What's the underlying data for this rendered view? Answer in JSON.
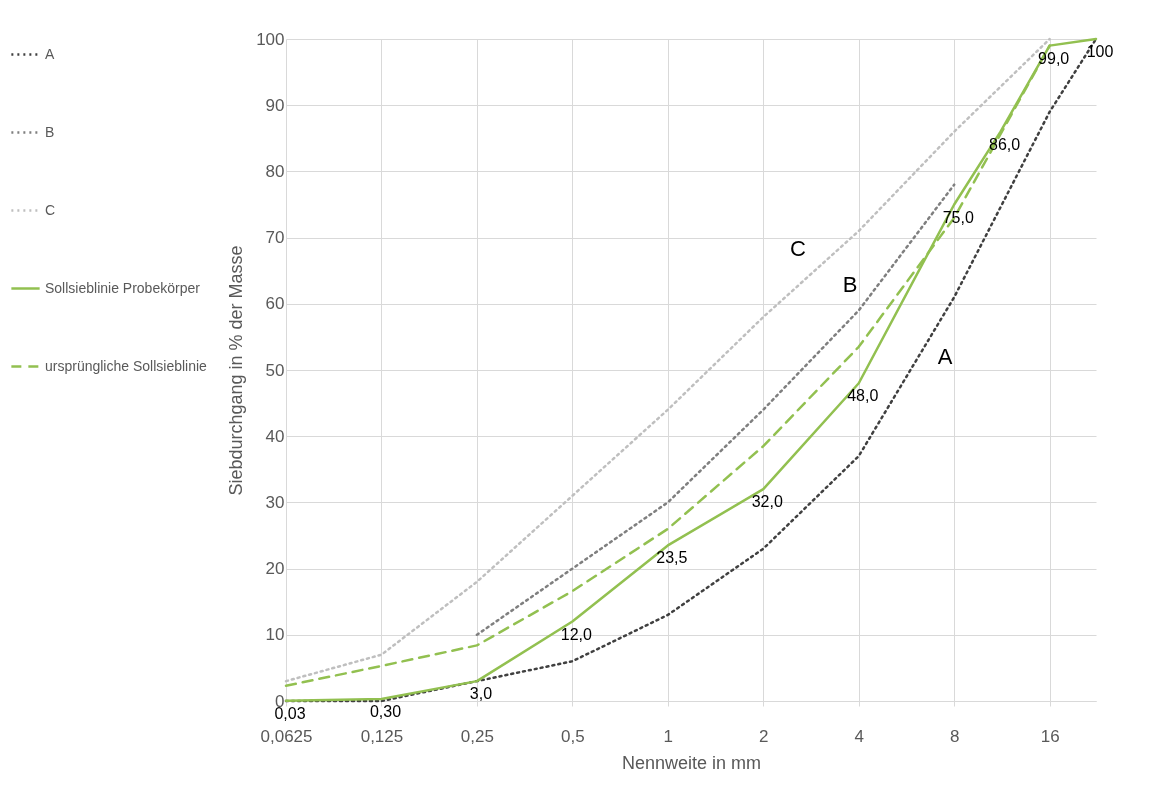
{
  "chart_data": {
    "type": "line",
    "xlabel": "Nennweite in mm",
    "ylabel": "Siebdurchgang in % der Masse",
    "log": "x",
    "xlim": [
      0.0625,
      22.4
    ],
    "ylim": [
      0,
      100
    ],
    "xticks": [
      {
        "value": 0.0625,
        "label": "0,0625"
      },
      {
        "value": 0.125,
        "label": "0,125"
      },
      {
        "value": 0.25,
        "label": "0,25"
      },
      {
        "value": 0.5,
        "label": "0,5"
      },
      1,
      2,
      4,
      8,
      16
    ],
    "yticks": [
      0,
      10,
      20,
      30,
      40,
      50,
      60,
      70,
      80,
      90,
      100
    ],
    "grid": true,
    "legend": "left",
    "series": [
      {
        "name": "A",
        "color": "#404040",
        "line_style": "dotted",
        "x": [
          0.0625,
          0.125,
          0.25,
          0.5,
          1,
          2,
          4,
          8,
          16,
          22.4
        ],
        "values": [
          0,
          0,
          3,
          6,
          13,
          23,
          37,
          61,
          89,
          100
        ]
      },
      {
        "name": "B",
        "color": "#7f7f7f",
        "line_style": "dotted",
        "x": [
          0.25,
          0.5,
          1,
          2,
          4,
          8
        ],
        "values": [
          10,
          20,
          30,
          44,
          59,
          78
        ]
      },
      {
        "name": "C",
        "color": "#bfbfbf",
        "line_style": "dotted",
        "x": [
          0.0625,
          0.125,
          0.25,
          0.5,
          1,
          2,
          4,
          8,
          16
        ],
        "values": [
          3,
          7,
          18,
          31,
          44,
          58,
          71,
          86,
          100
        ]
      },
      {
        "name": "Sollsieblinie Probekörper",
        "color": "#92c050",
        "line_style": "solid",
        "x": [
          0.0625,
          0.125,
          0.25,
          0.5,
          1,
          2,
          4,
          8,
          11.2,
          16,
          22.4
        ],
        "values": [
          0.03,
          0.3,
          3,
          12,
          23.5,
          32,
          48,
          75,
          86,
          99,
          100
        ],
        "value_labels": [
          "0,03",
          "0,30",
          "3,0",
          "12,0",
          "23,5",
          "32,0",
          "48,0",
          "75,0",
          "86,0",
          "99,0",
          "100"
        ]
      },
      {
        "name": "ursprüngliche Sollsieblinie",
        "color": "#92c050",
        "line_style": "dashed",
        "x": [
          0.0625,
          0.125,
          0.25,
          0.5,
          1,
          2,
          4,
          8,
          16
        ],
        "values": [
          2.3,
          5.3,
          8.4,
          16.6,
          26,
          38.5,
          53.5,
          73,
          99
        ]
      }
    ],
    "annotations": [
      "A",
      "B",
      "C"
    ]
  }
}
